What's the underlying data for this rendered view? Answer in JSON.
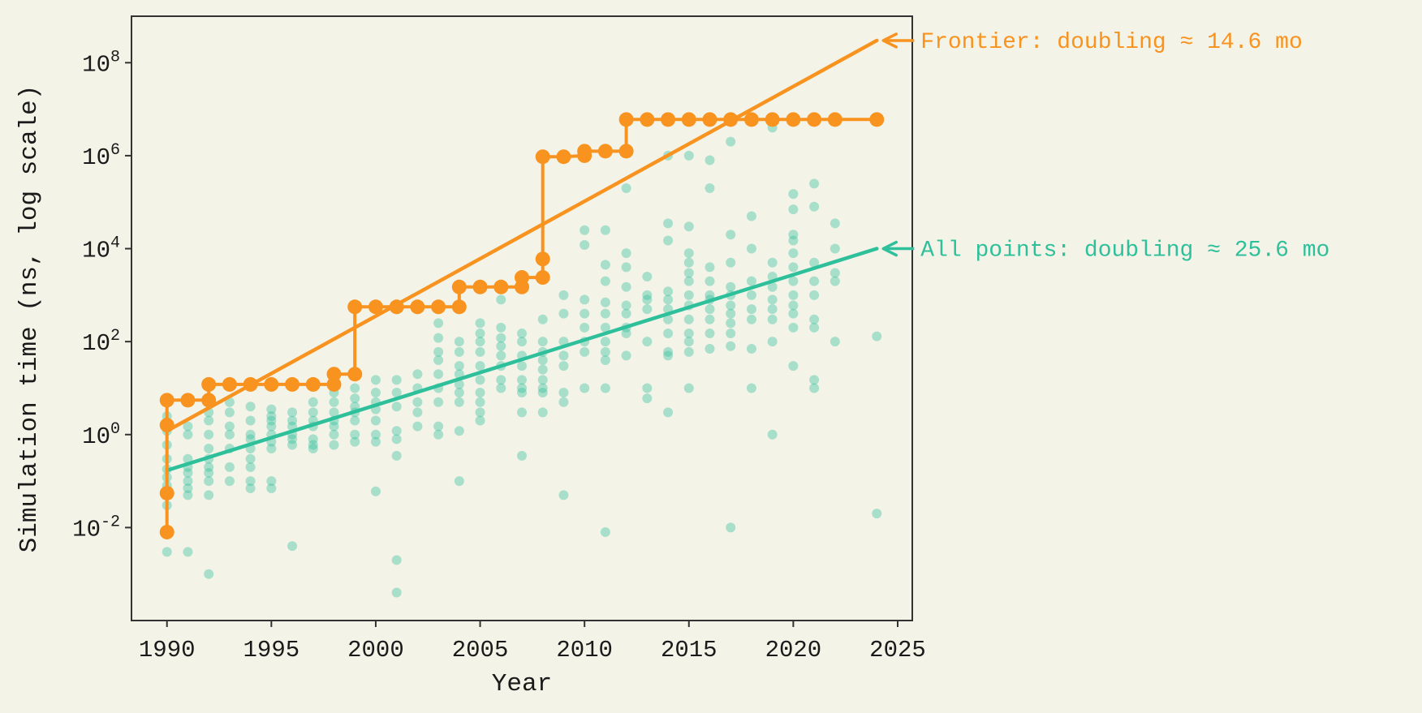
{
  "chart_data": {
    "type": "scatter",
    "title": "",
    "xlabel": "Year",
    "ylabel": "Simulation time (ns, log scale)",
    "xlim": [
      1988.3,
      2025.7
    ],
    "ylim": [
      0.0001,
      1000000000
    ],
    "yscale": "log",
    "grid": false,
    "x_ticks": [
      1990,
      1995,
      2000,
      2005,
      2010,
      2015,
      2020,
      2025
    ],
    "y_ticks": [
      {
        "value": 0.01,
        "base": "10",
        "exp": "-2"
      },
      {
        "value": 1,
        "base": "10",
        "exp": "0"
      },
      {
        "value": 100,
        "base": "10",
        "exp": "2"
      },
      {
        "value": 10000,
        "base": "10",
        "exp": "4"
      },
      {
        "value": 1000000,
        "base": "10",
        "exp": "6"
      },
      {
        "value": 100000000,
        "base": "10",
        "exp": "8"
      }
    ],
    "colors": {
      "frontier": "#f7931e",
      "all": "#2ec09b",
      "background": "#f4f3e8",
      "axes": "#333333"
    },
    "annotations": [
      {
        "text": "Frontier: doubling ≈ 14.6 mo",
        "series": "frontier",
        "x": 2024,
        "y": 300000000
      },
      {
        "text": "All points: doubling ≈ 25.6 mo",
        "series": "all",
        "x": 2024,
        "y": 10000
      }
    ],
    "fit_lines": [
      {
        "series": "frontier",
        "x": [
          1990,
          2024
        ],
        "y": [
          1.2,
          300000000
        ]
      },
      {
        "series": "all",
        "x": [
          1990,
          2024
        ],
        "y": [
          0.17,
          10000
        ]
      }
    ],
    "frontier_points": [
      [
        1990,
        0.008
      ],
      [
        1990,
        0.055
      ],
      [
        1990,
        1.6
      ],
      [
        1990,
        5.5
      ],
      [
        1991,
        5.5
      ],
      [
        1992,
        5.5
      ],
      [
        1992,
        12
      ],
      [
        1993,
        12
      ],
      [
        1994,
        12
      ],
      [
        1995,
        12
      ],
      [
        1996,
        12
      ],
      [
        1997,
        12
      ],
      [
        1998,
        12
      ],
      [
        1998,
        20
      ],
      [
        1999,
        20
      ],
      [
        1999,
        560
      ],
      [
        2000,
        560
      ],
      [
        2001,
        560
      ],
      [
        2002,
        560
      ],
      [
        2003,
        560
      ],
      [
        2004,
        560
      ],
      [
        2004,
        1500
      ],
      [
        2005,
        1500
      ],
      [
        2006,
        1500
      ],
      [
        2007,
        1500
      ],
      [
        2007,
        2400
      ],
      [
        2008,
        2400
      ],
      [
        2008,
        6000
      ],
      [
        2008,
        950000
      ],
      [
        2009,
        950000
      ],
      [
        2010,
        1000000
      ],
      [
        2010,
        1250000
      ],
      [
        2011,
        1250000
      ],
      [
        2012,
        1250000
      ],
      [
        2012,
        6000000
      ],
      [
        2013,
        6000000
      ],
      [
        2014,
        6000000
      ],
      [
        2015,
        6000000
      ],
      [
        2016,
        6000000
      ],
      [
        2017,
        6000000
      ],
      [
        2018,
        6000000
      ],
      [
        2019,
        6000000
      ],
      [
        2020,
        6000000
      ],
      [
        2021,
        6000000
      ],
      [
        2022,
        6000000
      ],
      [
        2024,
        6000000
      ]
    ],
    "all_points": [
      [
        1990,
        0.003
      ],
      [
        1990,
        0.03
      ],
      [
        1990,
        0.06
      ],
      [
        1990,
        0.08
      ],
      [
        1990,
        0.12
      ],
      [
        1990,
        0.18
      ],
      [
        1990,
        0.3
      ],
      [
        1990,
        0.6
      ],
      [
        1990,
        1.2
      ],
      [
        1990,
        2.5
      ],
      [
        1991,
        0.003
      ],
      [
        1991,
        0.05
      ],
      [
        1991,
        0.07
      ],
      [
        1991,
        0.1
      ],
      [
        1991,
        0.15
      ],
      [
        1991,
        0.2
      ],
      [
        1991,
        0.3
      ],
      [
        1991,
        1.0
      ],
      [
        1991,
        1.5
      ],
      [
        1992,
        0.001
      ],
      [
        1992,
        0.05
      ],
      [
        1992,
        0.1
      ],
      [
        1992,
        0.15
      ],
      [
        1992,
        0.2
      ],
      [
        1992,
        0.3
      ],
      [
        1992,
        0.5
      ],
      [
        1992,
        1.0
      ],
      [
        1992,
        2.0
      ],
      [
        1992,
        3.0
      ],
      [
        1993,
        0.1
      ],
      [
        1993,
        0.2
      ],
      [
        1993,
        0.5
      ],
      [
        1993,
        1.0
      ],
      [
        1993,
        1.5
      ],
      [
        1993,
        3.0
      ],
      [
        1993,
        5.0
      ],
      [
        1994,
        0.07
      ],
      [
        1994,
        0.1
      ],
      [
        1994,
        0.2
      ],
      [
        1994,
        0.3
      ],
      [
        1994,
        0.5
      ],
      [
        1994,
        0.8
      ],
      [
        1994,
        1.0
      ],
      [
        1994,
        2.0
      ],
      [
        1994,
        4.0
      ],
      [
        1995,
        0.07
      ],
      [
        1995,
        0.1
      ],
      [
        1995,
        0.5
      ],
      [
        1995,
        0.7
      ],
      [
        1995,
        1.0
      ],
      [
        1995,
        1.5
      ],
      [
        1995,
        2.0
      ],
      [
        1995,
        2.5
      ],
      [
        1995,
        3.5
      ],
      [
        1996,
        0.004
      ],
      [
        1996,
        0.6
      ],
      [
        1996,
        0.8
      ],
      [
        1996,
        1.0
      ],
      [
        1996,
        1.5
      ],
      [
        1996,
        2.0
      ],
      [
        1996,
        3.0
      ],
      [
        1997,
        0.5
      ],
      [
        1997,
        0.6
      ],
      [
        1997,
        0.8
      ],
      [
        1997,
        1.5
      ],
      [
        1997,
        2.0
      ],
      [
        1997,
        3.0
      ],
      [
        1997,
        5.0
      ],
      [
        1998,
        0.6
      ],
      [
        1998,
        1.0
      ],
      [
        1998,
        1.5
      ],
      [
        1998,
        2.0
      ],
      [
        1998,
        3.0
      ],
      [
        1998,
        5.0
      ],
      [
        1998,
        8.0
      ],
      [
        1999,
        0.7
      ],
      [
        1999,
        1.0
      ],
      [
        1999,
        2.0
      ],
      [
        1999,
        3.0
      ],
      [
        1999,
        4.0
      ],
      [
        1999,
        6.0
      ],
      [
        1999,
        10
      ],
      [
        2000,
        0.06
      ],
      [
        2000,
        0.7
      ],
      [
        2000,
        1.0
      ],
      [
        2000,
        2.0
      ],
      [
        2000,
        3.5
      ],
      [
        2000,
        5.0
      ],
      [
        2000,
        8.0
      ],
      [
        2000,
        15
      ],
      [
        2001,
        0.0004
      ],
      [
        2001,
        0.002
      ],
      [
        2001,
        0.35
      ],
      [
        2001,
        0.8
      ],
      [
        2001,
        1.2
      ],
      [
        2001,
        4.0
      ],
      [
        2001,
        8.0
      ],
      [
        2001,
        15
      ],
      [
        2002,
        1.5
      ],
      [
        2002,
        3.0
      ],
      [
        2002,
        5.0
      ],
      [
        2002,
        10
      ],
      [
        2002,
        20
      ],
      [
        2003,
        1.0
      ],
      [
        2003,
        1.5
      ],
      [
        2003,
        5.0
      ],
      [
        2003,
        10
      ],
      [
        2003,
        20
      ],
      [
        2003,
        40
      ],
      [
        2003,
        60
      ],
      [
        2003,
        120
      ],
      [
        2003,
        250
      ],
      [
        2004,
        0.1
      ],
      [
        2004,
        1.2
      ],
      [
        2004,
        5.0
      ],
      [
        2004,
        8.0
      ],
      [
        2004,
        12
      ],
      [
        2004,
        20
      ],
      [
        2004,
        30
      ],
      [
        2004,
        60
      ],
      [
        2004,
        100
      ],
      [
        2005,
        2.0
      ],
      [
        2005,
        3.0
      ],
      [
        2005,
        5.0
      ],
      [
        2005,
        8.0
      ],
      [
        2005,
        15
      ],
      [
        2005,
        30
      ],
      [
        2005,
        60
      ],
      [
        2005,
        100
      ],
      [
        2005,
        150
      ],
      [
        2005,
        250
      ],
      [
        2006,
        10
      ],
      [
        2006,
        15
      ],
      [
        2006,
        30
      ],
      [
        2006,
        50
      ],
      [
        2006,
        80
      ],
      [
        2006,
        120
      ],
      [
        2006,
        200
      ],
      [
        2006,
        800
      ],
      [
        2007,
        0.35
      ],
      [
        2007,
        3.0
      ],
      [
        2007,
        8.0
      ],
      [
        2007,
        10
      ],
      [
        2007,
        15
      ],
      [
        2007,
        30
      ],
      [
        2007,
        50
      ],
      [
        2007,
        100
      ],
      [
        2007,
        150
      ],
      [
        2008,
        3.0
      ],
      [
        2008,
        8.0
      ],
      [
        2008,
        10
      ],
      [
        2008,
        15
      ],
      [
        2008,
        25
      ],
      [
        2008,
        40
      ],
      [
        2008,
        60
      ],
      [
        2008,
        100
      ],
      [
        2008,
        300
      ],
      [
        2009,
        0.05
      ],
      [
        2009,
        5.0
      ],
      [
        2009,
        8.0
      ],
      [
        2009,
        30
      ],
      [
        2009,
        50
      ],
      [
        2009,
        100
      ],
      [
        2009,
        400
      ],
      [
        2009,
        1000
      ],
      [
        2010,
        10
      ],
      [
        2010,
        60
      ],
      [
        2010,
        100
      ],
      [
        2010,
        200
      ],
      [
        2010,
        400
      ],
      [
        2010,
        800
      ],
      [
        2010,
        12000
      ],
      [
        2010,
        25000
      ],
      [
        2011,
        0.008
      ],
      [
        2011,
        10
      ],
      [
        2011,
        40
      ],
      [
        2011,
        60
      ],
      [
        2011,
        100
      ],
      [
        2011,
        200
      ],
      [
        2011,
        400
      ],
      [
        2011,
        700
      ],
      [
        2011,
        2000
      ],
      [
        2011,
        4500
      ],
      [
        2011,
        25000
      ],
      [
        2012,
        50
      ],
      [
        2012,
        150
      ],
      [
        2012,
        200
      ],
      [
        2012,
        400
      ],
      [
        2012,
        600
      ],
      [
        2012,
        1500
      ],
      [
        2012,
        4000
      ],
      [
        2012,
        8000
      ],
      [
        2012,
        200000
      ],
      [
        2013,
        6.0
      ],
      [
        2013,
        10
      ],
      [
        2013,
        100
      ],
      [
        2013,
        500
      ],
      [
        2013,
        800
      ],
      [
        2013,
        1000
      ],
      [
        2013,
        2500
      ],
      [
        2014,
        3.0
      ],
      [
        2014,
        50
      ],
      [
        2014,
        60
      ],
      [
        2014,
        150
      ],
      [
        2014,
        300
      ],
      [
        2014,
        500
      ],
      [
        2014,
        800
      ],
      [
        2014,
        1200
      ],
      [
        2014,
        15000
      ],
      [
        2014,
        35000
      ],
      [
        2014,
        1000000
      ],
      [
        2015,
        10
      ],
      [
        2015,
        60
      ],
      [
        2015,
        100
      ],
      [
        2015,
        150
      ],
      [
        2015,
        300
      ],
      [
        2015,
        600
      ],
      [
        2015,
        1000
      ],
      [
        2015,
        2000
      ],
      [
        2015,
        3000
      ],
      [
        2015,
        5000
      ],
      [
        2015,
        8000
      ],
      [
        2015,
        30000
      ],
      [
        2015,
        1000000
      ],
      [
        2016,
        70
      ],
      [
        2016,
        150
      ],
      [
        2016,
        300
      ],
      [
        2016,
        500
      ],
      [
        2016,
        800
      ],
      [
        2016,
        1000
      ],
      [
        2016,
        2000
      ],
      [
        2016,
        4000
      ],
      [
        2016,
        200000
      ],
      [
        2016,
        800000
      ],
      [
        2017,
        0.01
      ],
      [
        2017,
        80
      ],
      [
        2017,
        150
      ],
      [
        2017,
        250
      ],
      [
        2017,
        400
      ],
      [
        2017,
        600
      ],
      [
        2017,
        1000
      ],
      [
        2017,
        1500
      ],
      [
        2017,
        5000
      ],
      [
        2017,
        20000
      ],
      [
        2017,
        2000000
      ],
      [
        2018,
        10
      ],
      [
        2018,
        70
      ],
      [
        2018,
        300
      ],
      [
        2018,
        500
      ],
      [
        2018,
        1000
      ],
      [
        2018,
        2000
      ],
      [
        2018,
        10000
      ],
      [
        2018,
        50000
      ],
      [
        2019,
        1.0
      ],
      [
        2019,
        100
      ],
      [
        2019,
        300
      ],
      [
        2019,
        500
      ],
      [
        2019,
        800
      ],
      [
        2019,
        1500
      ],
      [
        2019,
        2500
      ],
      [
        2019,
        5000
      ],
      [
        2019,
        4000000
      ],
      [
        2020,
        30
      ],
      [
        2020,
        200
      ],
      [
        2020,
        400
      ],
      [
        2020,
        600
      ],
      [
        2020,
        1000
      ],
      [
        2020,
        2000
      ],
      [
        2020,
        4000
      ],
      [
        2020,
        8000
      ],
      [
        2020,
        15000
      ],
      [
        2020,
        20000
      ],
      [
        2020,
        70000
      ],
      [
        2020,
        150000
      ],
      [
        2021,
        10
      ],
      [
        2021,
        15
      ],
      [
        2021,
        200
      ],
      [
        2021,
        300
      ],
      [
        2021,
        1000
      ],
      [
        2021,
        2000
      ],
      [
        2021,
        5000
      ],
      [
        2021,
        80000
      ],
      [
        2021,
        250000
      ],
      [
        2022,
        100
      ],
      [
        2022,
        2000
      ],
      [
        2022,
        3000
      ],
      [
        2022,
        10000
      ],
      [
        2022,
        35000
      ],
      [
        2024,
        0.02
      ],
      [
        2024,
        130
      ]
    ]
  }
}
